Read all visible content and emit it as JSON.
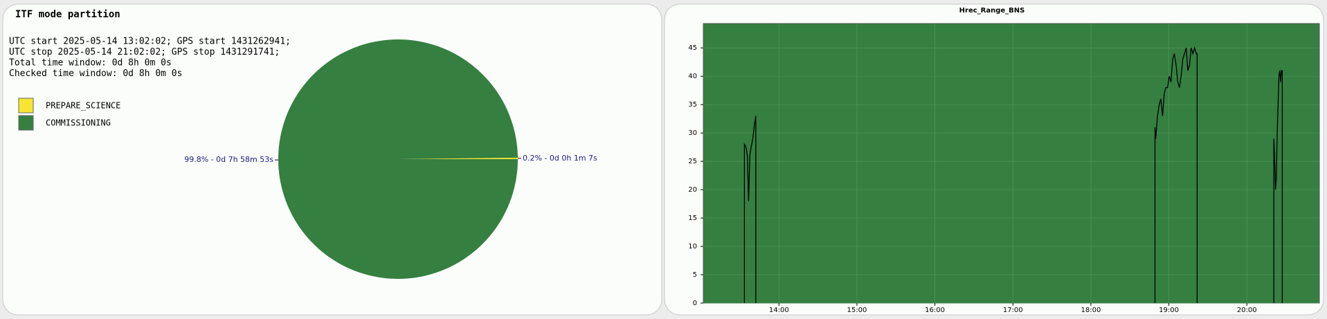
{
  "chart_data": [
    {
      "type": "pie",
      "title": "ITF mode partition",
      "text_lines": [
        "UTC start 2025-05-14 13:02:02; GPS start 1431262941;",
        "UTC stop 2025-05-14 21:02:02; GPS stop 1431291741;",
        "Total time window: 0d 8h 0m 0s",
        "Checked time window: 0d 8h 0m 0s"
      ],
      "categories": [
        "PREPARE_SCIENCE",
        "COMMISSIONING"
      ],
      "values": [
        0.2,
        99.8
      ],
      "value_labels": [
        "0.2% - 0d 0h 1m 7s",
        "99.8% - 0d 7h 58m 53s"
      ],
      "colors": [
        "#f7e631",
        "#357f41"
      ]
    },
    {
      "type": "line",
      "title": "Hrec_Range_BNS",
      "color": "#000000",
      "background": "#357f41",
      "grid": true,
      "x": [
        13.557,
        13.557,
        13.578,
        13.595,
        13.611,
        13.627,
        13.643,
        13.665,
        13.686,
        13.703,
        13.703,
        null,
        18.822,
        18.822,
        18.832,
        18.854,
        18.876,
        18.897,
        18.919,
        18.941,
        18.962,
        18.984,
        19.005,
        19.027,
        19.049,
        19.07,
        19.092,
        19.114,
        19.135,
        19.157,
        19.178,
        19.2,
        19.222,
        19.243,
        19.265,
        19.286,
        19.308,
        19.33,
        19.351,
        19.362,
        19.362,
        null,
        20.346,
        20.346,
        20.357,
        20.368,
        20.378,
        20.389,
        20.4,
        20.411,
        20.422,
        20.432,
        20.443,
        20.454,
        20.454
      ],
      "values": [
        0,
        28,
        27.5,
        26,
        18,
        26,
        27.5,
        29,
        31.5,
        33,
        0,
        null,
        0,
        31,
        29,
        33,
        35,
        36,
        33,
        37,
        38,
        38,
        40,
        39,
        43,
        44,
        42,
        39,
        38,
        40,
        43,
        44,
        45,
        41,
        42,
        45,
        44,
        45,
        44,
        44,
        0,
        null,
        0,
        29,
        25,
        20,
        22,
        30,
        35,
        40,
        41,
        39,
        41,
        41,
        0
      ],
      "xlim": [
        13.03,
        20.93
      ],
      "xticks": [
        {
          "value": 14,
          "label": "14:00"
        },
        {
          "value": 15,
          "label": "15:00"
        },
        {
          "value": 16,
          "label": "16:00"
        },
        {
          "value": 17,
          "label": "17:00"
        },
        {
          "value": 18,
          "label": "18:00"
        },
        {
          "value": 19,
          "label": "19:00"
        },
        {
          "value": 20,
          "label": "20:00"
        }
      ],
      "ylim": [
        0,
        49.3
      ],
      "yticks": [
        0,
        5,
        10,
        15,
        20,
        25,
        30,
        35,
        40,
        45
      ]
    }
  ]
}
